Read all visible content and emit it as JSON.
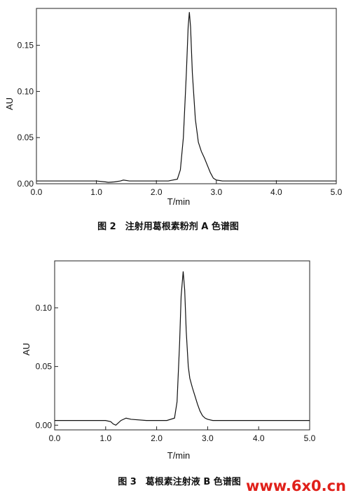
{
  "chart_data": [
    {
      "type": "line",
      "xlabel": "T/min",
      "ylabel": "AU",
      "xlim": [
        0.0,
        5.0
      ],
      "ylim": [
        0.0,
        0.19
      ],
      "x_ticks": [
        0.0,
        1.0,
        2.0,
        3.0,
        4.0,
        5.0
      ],
      "x_tick_labels": [
        "0.0",
        "1.0",
        "2.0",
        "3.0",
        "4.0",
        "5.0"
      ],
      "y_ticks": [
        0.0,
        0.05,
        0.1,
        0.15
      ],
      "y_tick_labels": [
        "0.00",
        "0.05",
        "0.10",
        "0.15"
      ],
      "caption": "图 2　注射用葛根素粉剂 A 色谱图",
      "series": [
        {
          "x": [
            0.0,
            1.0,
            1.15,
            1.2,
            1.3,
            1.4,
            1.45,
            1.55,
            1.8,
            2.2,
            2.35,
            2.4,
            2.45,
            2.5,
            2.53,
            2.55,
            2.57,
            2.6,
            2.65,
            2.7,
            2.75,
            2.8,
            2.85,
            2.9,
            2.95,
            3.0,
            3.1,
            3.3,
            4.0,
            5.0
          ],
          "y": [
            0.003,
            0.003,
            0.002,
            0.0015,
            0.002,
            0.003,
            0.004,
            0.003,
            0.003,
            0.003,
            0.005,
            0.015,
            0.05,
            0.12,
            0.17,
            0.186,
            0.17,
            0.12,
            0.07,
            0.045,
            0.035,
            0.028,
            0.02,
            0.012,
            0.006,
            0.004,
            0.003,
            0.003,
            0.003,
            0.003
          ]
        }
      ]
    },
    {
      "type": "line",
      "xlabel": "T/min",
      "ylabel": "AU",
      "xlim": [
        0.0,
        5.0
      ],
      "ylim": [
        -0.004,
        0.14
      ],
      "x_ticks": [
        0.0,
        1.0,
        2.0,
        3.0,
        4.0,
        5.0
      ],
      "x_tick_labels": [
        "0.0",
        "1.0",
        "2.0",
        "3.0",
        "4.0",
        "5.0"
      ],
      "y_ticks": [
        0.0,
        0.05,
        0.1
      ],
      "y_tick_labels": [
        "0.00",
        "0.05",
        "0.10"
      ],
      "caption": "图 3　葛根素注射液 B 色谱图",
      "series": [
        {
          "x": [
            0.0,
            1.0,
            1.1,
            1.15,
            1.2,
            1.25,
            1.3,
            1.4,
            1.5,
            1.8,
            2.2,
            2.35,
            2.4,
            2.45,
            2.48,
            2.52,
            2.55,
            2.58,
            2.62,
            2.65,
            2.7,
            2.75,
            2.8,
            2.85,
            2.9,
            2.95,
            3.0,
            3.1,
            3.3,
            4.0,
            5.0
          ],
          "y": [
            0.004,
            0.004,
            0.003,
            0.001,
            0.0,
            0.002,
            0.004,
            0.006,
            0.005,
            0.004,
            0.004,
            0.006,
            0.02,
            0.07,
            0.11,
            0.131,
            0.115,
            0.08,
            0.05,
            0.04,
            0.032,
            0.025,
            0.018,
            0.012,
            0.008,
            0.006,
            0.005,
            0.004,
            0.004,
            0.004,
            0.004
          ]
        }
      ]
    }
  ],
  "watermark": "www.6x0.cn"
}
